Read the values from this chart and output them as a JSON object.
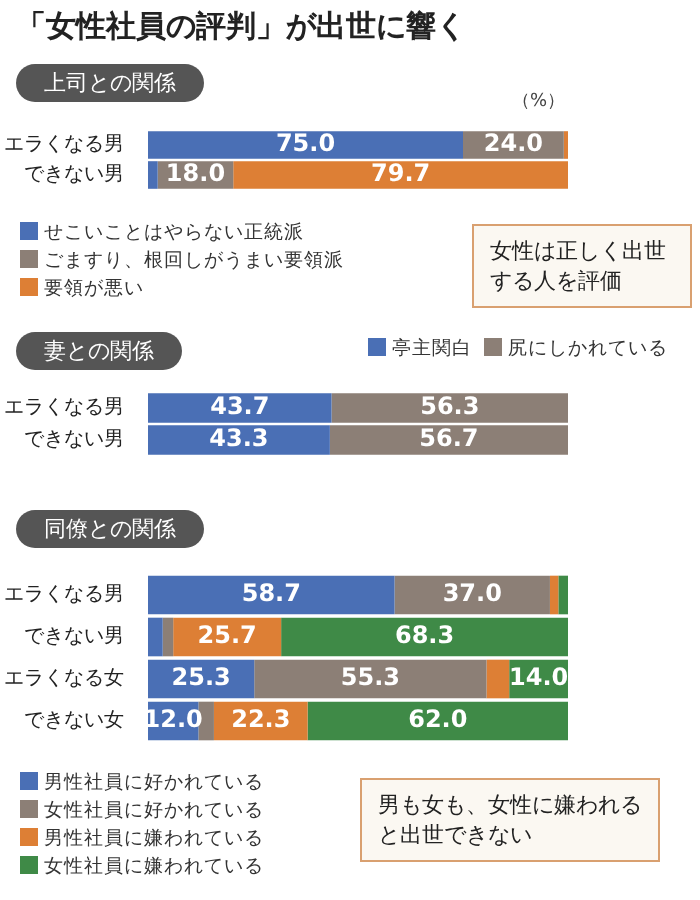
{
  "chart_data": [
    {
      "type": "bar",
      "title": "「女性社員の評判」が出世に響く",
      "subtitle": "上司との関係",
      "orientation": "horizontal",
      "stacked": true,
      "xlim": [
        0,
        100
      ],
      "tick_labels": "y",
      "legend": "bottom left",
      "categories": [
        "エラくなる男",
        "できない男"
      ],
      "series": [
        {
          "name": "せこいことはやらない正統派",
          "color": "#4a6fb5",
          "values": [
            75.0,
            2.3
          ],
          "value_labels": [
            "75.0",
            null
          ]
        },
        {
          "name": "ごますり、根回しがうまい要領派",
          "color": "#8c7f76",
          "values": [
            24.0,
            18.0
          ],
          "value_labels": [
            "24.0",
            "18.0"
          ]
        },
        {
          "name": "要領が悪い",
          "color": "#dd7f35",
          "values": [
            1.0,
            79.7
          ],
          "value_labels": [
            null,
            "79.7"
          ]
        }
      ],
      "annotations": [
        "（%）",
        "女性は正しく出世する人を評価"
      ]
    },
    {
      "type": "bar",
      "title": "妻との関係",
      "orientation": "horizontal",
      "stacked": true,
      "xlim": [
        0,
        100
      ],
      "tick_labels": "y",
      "legend": "top right",
      "categories": [
        "エラくなる男",
        "できない男"
      ],
      "series": [
        {
          "name": "亭主関白",
          "color": "#4a6fb5",
          "values": [
            43.7,
            43.3
          ],
          "value_labels": [
            "43.7",
            "43.3"
          ]
        },
        {
          "name": "尻にしかれている",
          "color": "#8c7f76",
          "values": [
            56.3,
            56.7
          ],
          "value_labels": [
            "56.3",
            "56.7"
          ]
        }
      ]
    },
    {
      "type": "bar",
      "title": "同僚との関係",
      "orientation": "horizontal",
      "stacked": true,
      "xlim": [
        0,
        100
      ],
      "tick_labels": "y",
      "legend": "bottom left",
      "categories": [
        "エラくなる男",
        "できない男",
        "エラくなる女",
        "できない女"
      ],
      "series": [
        {
          "name": "男性社員に好かれている",
          "color": "#4a6fb5",
          "values": [
            58.7,
            3.5,
            25.3,
            12.0
          ],
          "value_labels": [
            "58.7",
            null,
            "25.3",
            "12.0"
          ]
        },
        {
          "name": "女性社員に好かれている",
          "color": "#8c7f76",
          "values": [
            37.0,
            2.5,
            55.3,
            3.7
          ],
          "value_labels": [
            "37.0",
            null,
            "55.3",
            null
          ]
        },
        {
          "name": "男性社員に嫌われている",
          "color": "#dd7f35",
          "values": [
            2.0,
            25.7,
            5.4,
            22.3
          ],
          "value_labels": [
            null,
            "25.7",
            null,
            "22.3"
          ]
        },
        {
          "name": "女性社員に嫌われている",
          "color": "#3f8a47",
          "values": [
            2.3,
            68.3,
            14.0,
            62.0
          ],
          "value_labels": [
            null,
            "68.3",
            "14.0",
            "62.0"
          ]
        }
      ],
      "annotations": [
        "男も女も、女性に嫌われると出世できない"
      ]
    }
  ]
}
